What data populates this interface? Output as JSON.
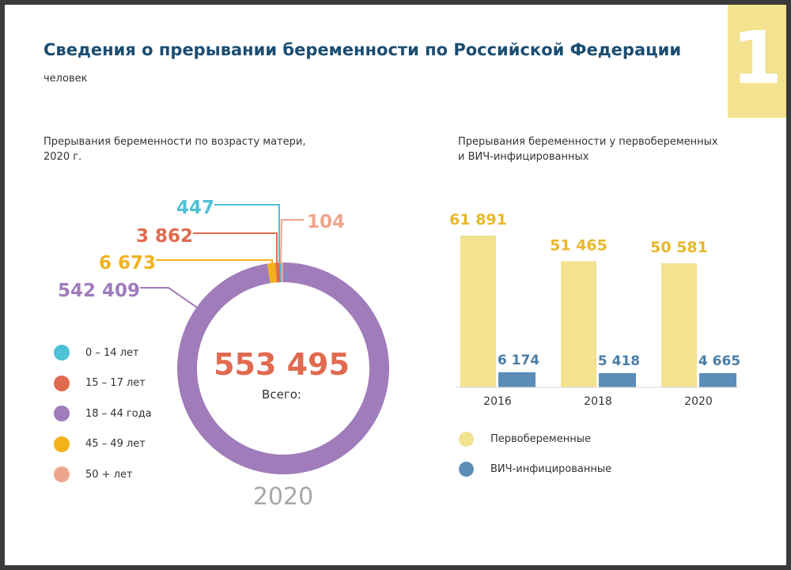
{
  "badge": "1",
  "title": "Сведения о прерывании беременности по Российской Федерации",
  "unit": "человек",
  "chart_data": [
    {
      "type": "pie",
      "title": "Прерывания беременности по возрасту матери,\n2020 г.",
      "center_value": "553 495",
      "center_label": "Всего:",
      "year_label": "2020",
      "slices": [
        {
          "label": "0 – 14 лет",
          "value": 447,
          "display": "447",
          "color": "#4fc1d6"
        },
        {
          "label": "15 – 17 лет",
          "value": 3862,
          "display": "3 862",
          "color": "#e06a4f"
        },
        {
          "label": "18 – 44 года",
          "value": 542409,
          "display": "542 409",
          "color": "#a07cbb"
        },
        {
          "label": "45 – 49 лет",
          "value": 6673,
          "display": "6 673",
          "color": "#f3b21c"
        },
        {
          "label": "50 + лет",
          "value": 104,
          "display": "104",
          "color": "#efa58d"
        }
      ]
    },
    {
      "type": "bar",
      "title": "Прерывания беременности у первобеременных\nи ВИЧ-инфицированных",
      "categories": [
        "2016",
        "2018",
        "2020"
      ],
      "series": [
        {
          "name": "Первобеременные",
          "values": [
            61891,
            51465,
            50581
          ],
          "labels": [
            "61 891",
            "51 465",
            "50 581"
          ],
          "color": "#f3e28f",
          "label_color": "#e8b82a"
        },
        {
          "name": "ВИЧ-инфицированные",
          "values": [
            6174,
            5418,
            4665
          ],
          "labels": [
            "6 174",
            "5 418",
            "4 665"
          ],
          "color": "#5b8db8",
          "label_color": "#4a7ea8"
        }
      ]
    }
  ]
}
